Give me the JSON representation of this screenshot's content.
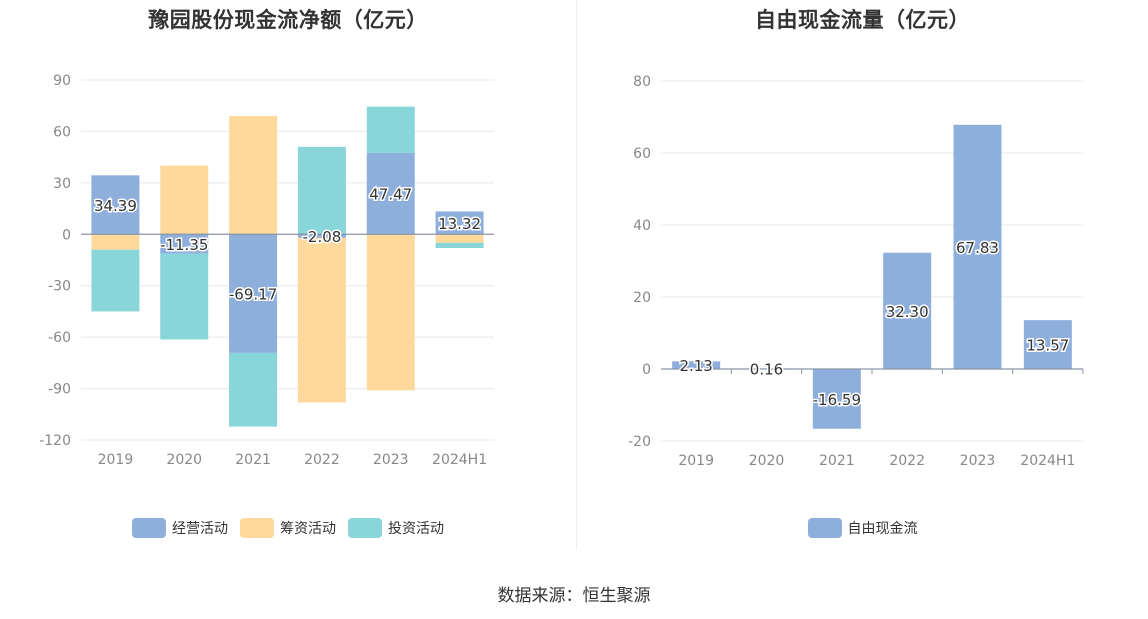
{
  "chart_data": [
    {
      "type": "bar",
      "stacked": true,
      "title": "豫园股份现金流净额（亿元）",
      "categories": [
        "2019",
        "2020",
        "2021",
        "2022",
        "2023",
        "2024H1"
      ],
      "ylim": [
        -120,
        90
      ],
      "yticks": [
        90,
        60,
        30,
        0,
        -30,
        -60,
        -90,
        -120
      ],
      "grid": true,
      "legend_position": "bottom",
      "series": [
        {
          "name": "经营活动",
          "color": "#8eaedc",
          "values": [
            34.39,
            -11.35,
            -69.17,
            -2.08,
            47.47,
            13.32
          ]
        },
        {
          "name": "筹资活动",
          "color": "#ffd99b",
          "values": [
            -9,
            40,
            69,
            -96,
            -91,
            -5
          ]
        },
        {
          "name": "投资活动",
          "color": "#88d6da",
          "values": [
            -36,
            -50,
            -43,
            51,
            27,
            -3
          ]
        }
      ],
      "data_labels": [
        "34.39",
        "-11.35",
        "-69.17",
        "-2.08",
        "47.47",
        "13.32"
      ]
    },
    {
      "type": "bar",
      "title": "自由现金流量（亿元）",
      "categories": [
        "2019",
        "2020",
        "2021",
        "2022",
        "2023",
        "2024H1"
      ],
      "ylim": [
        -20,
        80
      ],
      "yticks": [
        80,
        60,
        40,
        20,
        0,
        -20
      ],
      "grid": true,
      "legend_position": "bottom",
      "series": [
        {
          "name": "自由现金流",
          "color": "#8eaedc",
          "values": [
            2.13,
            0.16,
            -16.59,
            32.3,
            67.83,
            13.57
          ]
        }
      ],
      "data_labels": [
        "2.13",
        "0.16",
        "-16.59",
        "32.30",
        "67.83",
        "13.57"
      ]
    }
  ],
  "source": "数据来源：恒生聚源"
}
